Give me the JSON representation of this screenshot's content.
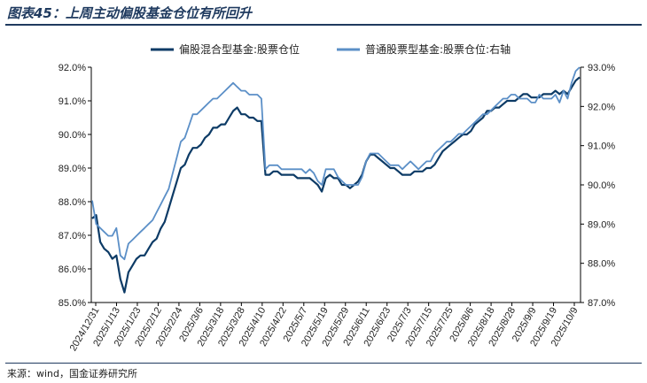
{
  "title": "图表45：上周主动偏股基金仓位有所回升",
  "source": "来源：wind，国金证券研究所",
  "chart_data": {
    "type": "line",
    "title": "图表45：上周主动偏股基金仓位有所回升",
    "legend_position": "top",
    "grid": false,
    "y_left": {
      "min": 85.0,
      "max": 92.0,
      "ticks": [
        85.0,
        86.0,
        87.0,
        88.0,
        89.0,
        90.0,
        91.0,
        92.0
      ],
      "tick_labels": [
        "85.0%",
        "86.0%",
        "87.0%",
        "88.0%",
        "89.0%",
        "90.0%",
        "91.0%",
        "92.0%"
      ]
    },
    "y_right": {
      "min": 87.0,
      "max": 93.0,
      "ticks": [
        87.0,
        88.0,
        89.0,
        90.0,
        91.0,
        92.0,
        93.0
      ],
      "tick_labels": [
        "87.0%",
        "88.0%",
        "89.0%",
        "90.0%",
        "91.0%",
        "92.0%",
        "93.0%"
      ]
    },
    "x_tick_labels": [
      "2024/12/31",
      "2025/1/13",
      "2025/1/23",
      "2025/2/12",
      "2025/2/24",
      "2025/3/6",
      "2025/3/18",
      "2025/3/28",
      "2025/4/10",
      "2025/4/22",
      "2025/5/7",
      "2025/5/19",
      "2025/5/29",
      "2025/6/11",
      "2025/6/23",
      "2025/7/3",
      "2025/7/15",
      "2025/7/25",
      "2025/8/6",
      "2025/8/18",
      "2025/8/28",
      "2025/9/9",
      "2025/9/19",
      "2025/10/9"
    ],
    "series": [
      {
        "name": "偏股混合型基金:股票仓位",
        "axis": "left",
        "color": "#0d3b66",
        "values": [
          87.5,
          87.6,
          86.8,
          86.6,
          86.5,
          86.3,
          86.4,
          85.7,
          85.3,
          85.9,
          86.1,
          86.3,
          86.4,
          86.4,
          86.6,
          86.8,
          86.9,
          87.2,
          87.4,
          87.8,
          88.2,
          88.6,
          89.0,
          89.1,
          89.4,
          89.6,
          89.6,
          89.7,
          89.9,
          90.0,
          90.2,
          90.2,
          90.3,
          90.3,
          90.5,
          90.7,
          90.8,
          90.6,
          90.6,
          90.5,
          90.5,
          90.4,
          90.4,
          88.8,
          88.8,
          88.9,
          88.9,
          88.8,
          88.8,
          88.8,
          88.8,
          88.7,
          88.7,
          88.7,
          88.7,
          88.6,
          88.5,
          88.3,
          88.7,
          88.8,
          88.7,
          88.7,
          88.5,
          88.5,
          88.4,
          88.5,
          88.6,
          88.8,
          89.2,
          89.4,
          89.4,
          89.3,
          89.2,
          89.1,
          89.0,
          89.0,
          88.9,
          88.8,
          88.8,
          88.8,
          88.9,
          88.9,
          88.9,
          89.0,
          89.0,
          89.1,
          89.3,
          89.5,
          89.6,
          89.7,
          89.8,
          89.9,
          90.0,
          90.0,
          90.1,
          90.3,
          90.4,
          90.5,
          90.7,
          90.7,
          90.8,
          90.8,
          90.9,
          91.0,
          91.0,
          91.0,
          91.1,
          91.2,
          91.2,
          91.1,
          91.1,
          91.1,
          91.2,
          91.2,
          91.2,
          91.3,
          91.2,
          91.3,
          91.2,
          91.4,
          91.6,
          91.7
        ]
      },
      {
        "name": "普通股票型基金:股票仓位:右轴",
        "axis": "right",
        "color": "#5b8fc7",
        "values": [
          89.6,
          89.0,
          88.9,
          88.8,
          88.7,
          88.7,
          88.9,
          88.2,
          88.1,
          88.5,
          88.6,
          88.7,
          88.8,
          88.9,
          89.0,
          89.1,
          89.3,
          89.5,
          89.7,
          89.9,
          90.3,
          90.7,
          91.1,
          91.2,
          91.5,
          91.8,
          91.8,
          91.9,
          92.0,
          92.1,
          92.2,
          92.2,
          92.3,
          92.4,
          92.5,
          92.6,
          92.5,
          92.4,
          92.4,
          92.3,
          92.3,
          92.3,
          92.2,
          90.4,
          90.5,
          90.5,
          90.5,
          90.4,
          90.4,
          90.4,
          90.4,
          90.4,
          90.4,
          90.3,
          90.4,
          90.3,
          90.1,
          90.0,
          90.4,
          90.4,
          90.4,
          90.2,
          90.1,
          90.0,
          90.0,
          90.0,
          90.0,
          90.2,
          90.6,
          90.8,
          90.8,
          90.8,
          90.7,
          90.6,
          90.5,
          90.5,
          90.5,
          90.4,
          90.5,
          90.6,
          90.5,
          90.4,
          90.5,
          90.6,
          90.6,
          90.8,
          90.9,
          91.0,
          91.1,
          91.1,
          91.2,
          91.3,
          91.3,
          91.4,
          91.5,
          91.6,
          91.7,
          91.8,
          91.8,
          91.9,
          92.0,
          92.1,
          92.2,
          92.2,
          92.3,
          92.3,
          92.2,
          92.2,
          92.2,
          92.1,
          92.1,
          92.3,
          92.2,
          92.2,
          92.2,
          92.3,
          92.1,
          92.4,
          92.2,
          92.6,
          92.9,
          93.0
        ]
      }
    ]
  }
}
